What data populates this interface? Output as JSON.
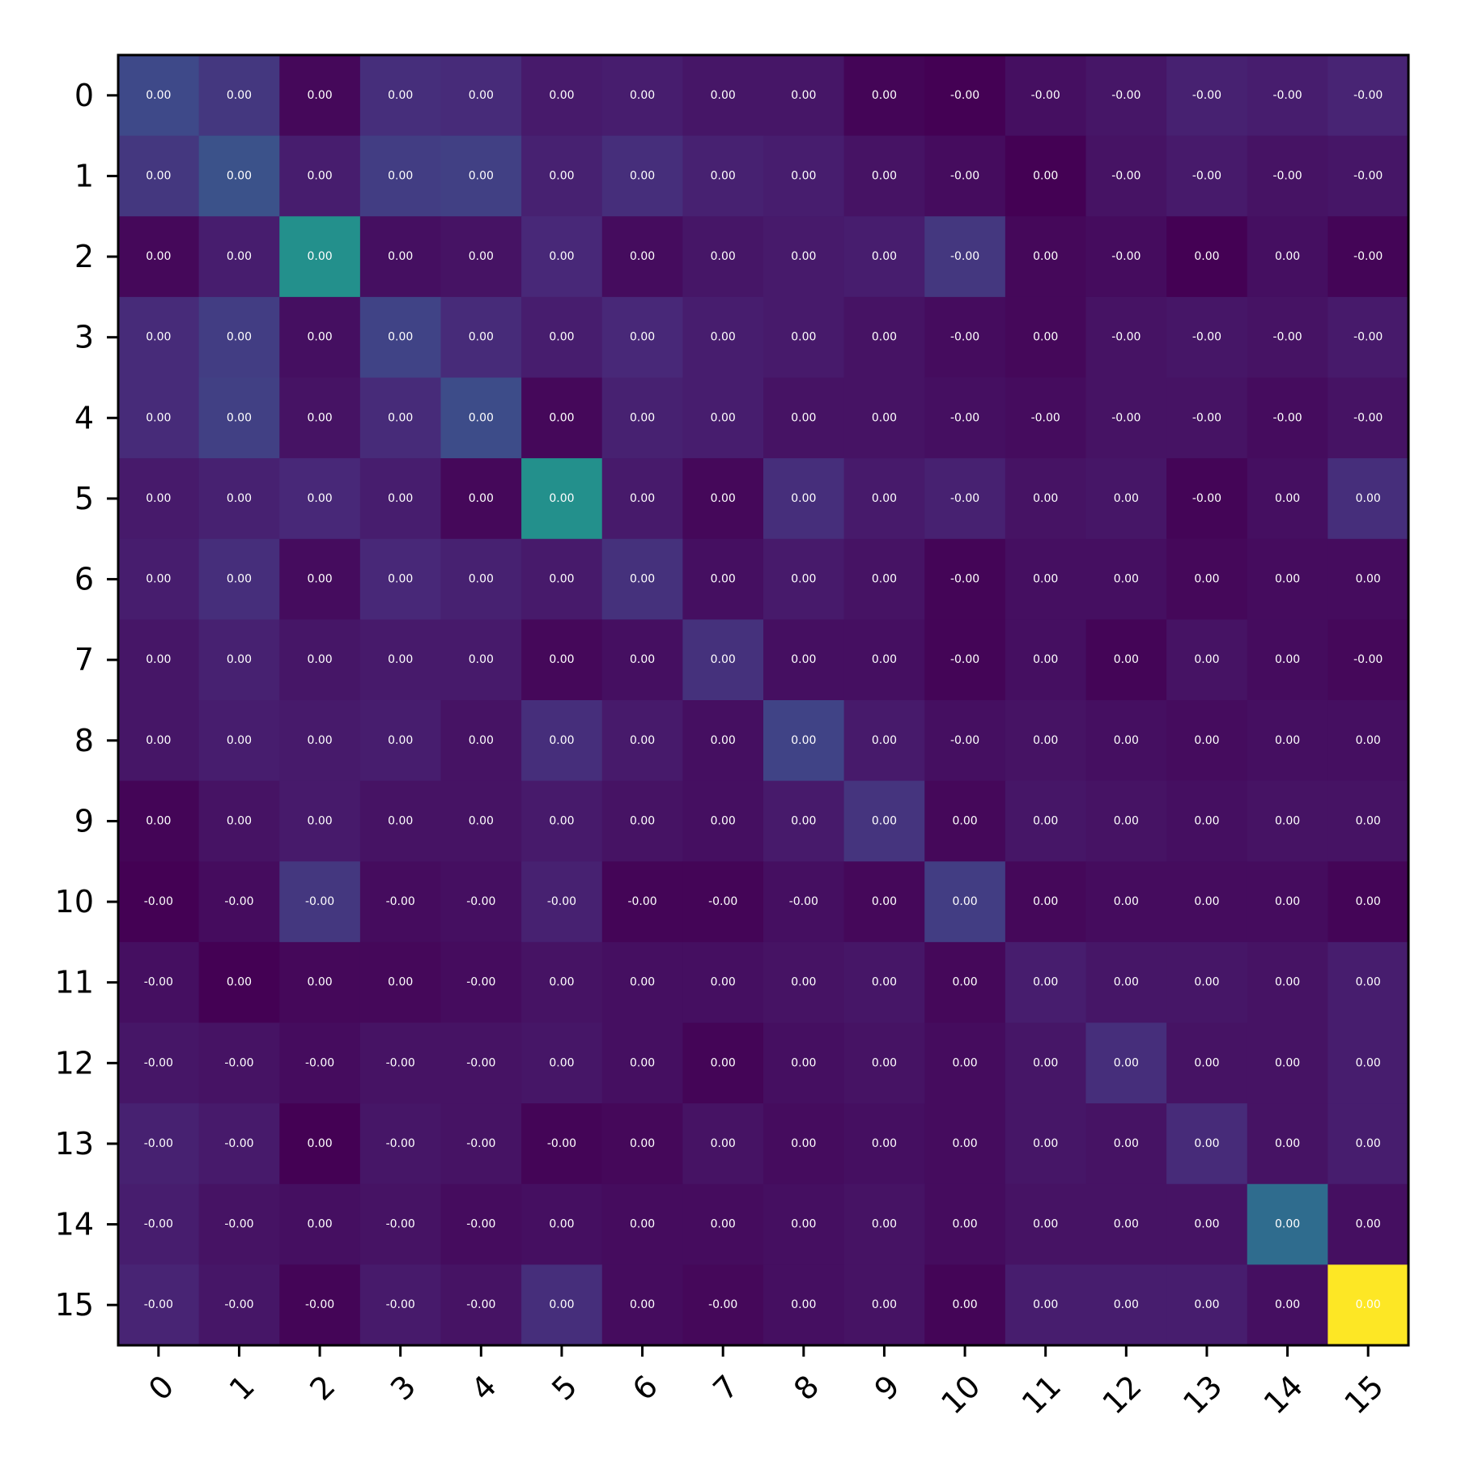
{
  "chart_data": {
    "type": "heatmap",
    "title": "",
    "xlabel": "",
    "ylabel": "",
    "x_ticks": [
      "0",
      "1",
      "2",
      "3",
      "4",
      "5",
      "6",
      "7",
      "8",
      "9",
      "10",
      "11",
      "12",
      "13",
      "14",
      "15"
    ],
    "y_ticks": [
      "0",
      "1",
      "2",
      "3",
      "4",
      "5",
      "6",
      "7",
      "8",
      "9",
      "10",
      "11",
      "12",
      "13",
      "14",
      "15"
    ],
    "colormap": "viridis",
    "cell_labels": [
      [
        "0.00",
        "0.00",
        "0.00",
        "0.00",
        "0.00",
        "0.00",
        "0.00",
        "0.00",
        "0.00",
        "0.00",
        "-0.00",
        "-0.00",
        "-0.00",
        "-0.00",
        "-0.00",
        "-0.00"
      ],
      [
        "0.00",
        "0.00",
        "0.00",
        "0.00",
        "0.00",
        "0.00",
        "0.00",
        "0.00",
        "0.00",
        "0.00",
        "-0.00",
        "0.00",
        "-0.00",
        "-0.00",
        "-0.00",
        "-0.00"
      ],
      [
        "0.00",
        "0.00",
        "0.00",
        "0.00",
        "0.00",
        "0.00",
        "0.00",
        "0.00",
        "0.00",
        "0.00",
        "-0.00",
        "0.00",
        "-0.00",
        "0.00",
        "0.00",
        "-0.00"
      ],
      [
        "0.00",
        "0.00",
        "0.00",
        "0.00",
        "0.00",
        "0.00",
        "0.00",
        "0.00",
        "0.00",
        "0.00",
        "-0.00",
        "0.00",
        "-0.00",
        "-0.00",
        "-0.00",
        "-0.00"
      ],
      [
        "0.00",
        "0.00",
        "0.00",
        "0.00",
        "0.00",
        "0.00",
        "0.00",
        "0.00",
        "0.00",
        "0.00",
        "-0.00",
        "-0.00",
        "-0.00",
        "-0.00",
        "-0.00",
        "-0.00"
      ],
      [
        "0.00",
        "0.00",
        "0.00",
        "0.00",
        "0.00",
        "0.00",
        "0.00",
        "0.00",
        "0.00",
        "0.00",
        "-0.00",
        "0.00",
        "0.00",
        "-0.00",
        "0.00",
        "0.00"
      ],
      [
        "0.00",
        "0.00",
        "0.00",
        "0.00",
        "0.00",
        "0.00",
        "0.00",
        "0.00",
        "0.00",
        "0.00",
        "-0.00",
        "0.00",
        "0.00",
        "0.00",
        "0.00",
        "0.00"
      ],
      [
        "0.00",
        "0.00",
        "0.00",
        "0.00",
        "0.00",
        "0.00",
        "0.00",
        "0.00",
        "0.00",
        "0.00",
        "-0.00",
        "0.00",
        "0.00",
        "0.00",
        "0.00",
        "-0.00"
      ],
      [
        "0.00",
        "0.00",
        "0.00",
        "0.00",
        "0.00",
        "0.00",
        "0.00",
        "0.00",
        "0.00",
        "0.00",
        "-0.00",
        "0.00",
        "0.00",
        "0.00",
        "0.00",
        "0.00"
      ],
      [
        "0.00",
        "0.00",
        "0.00",
        "0.00",
        "0.00",
        "0.00",
        "0.00",
        "0.00",
        "0.00",
        "0.00",
        "0.00",
        "0.00",
        "0.00",
        "0.00",
        "0.00",
        "0.00"
      ],
      [
        "-0.00",
        "-0.00",
        "-0.00",
        "-0.00",
        "-0.00",
        "-0.00",
        "-0.00",
        "-0.00",
        "-0.00",
        "0.00",
        "0.00",
        "0.00",
        "0.00",
        "0.00",
        "0.00",
        "0.00"
      ],
      [
        "-0.00",
        "0.00",
        "0.00",
        "0.00",
        "-0.00",
        "0.00",
        "0.00",
        "0.00",
        "0.00",
        "0.00",
        "0.00",
        "0.00",
        "0.00",
        "0.00",
        "0.00",
        "0.00"
      ],
      [
        "-0.00",
        "-0.00",
        "-0.00",
        "-0.00",
        "-0.00",
        "0.00",
        "0.00",
        "0.00",
        "0.00",
        "0.00",
        "0.00",
        "0.00",
        "0.00",
        "0.00",
        "0.00",
        "0.00"
      ],
      [
        "-0.00",
        "-0.00",
        "0.00",
        "-0.00",
        "-0.00",
        "-0.00",
        "0.00",
        "0.00",
        "0.00",
        "0.00",
        "0.00",
        "0.00",
        "0.00",
        "0.00",
        "0.00",
        "0.00"
      ],
      [
        "-0.00",
        "-0.00",
        "0.00",
        "-0.00",
        "-0.00",
        "0.00",
        "0.00",
        "0.00",
        "0.00",
        "0.00",
        "0.00",
        "0.00",
        "0.00",
        "0.00",
        "0.00",
        "0.00"
      ],
      [
        "-0.00",
        "-0.00",
        "-0.00",
        "-0.00",
        "-0.00",
        "0.00",
        "0.00",
        "-0.00",
        "0.00",
        "0.00",
        "0.00",
        "0.00",
        "0.00",
        "0.00",
        "0.00",
        "0.00"
      ]
    ],
    "intensity": [
      [
        0.22,
        0.16,
        0.02,
        0.13,
        0.12,
        0.07,
        0.08,
        0.06,
        0.06,
        0.01,
        0.0,
        0.04,
        0.06,
        0.09,
        0.08,
        0.1
      ],
      [
        0.16,
        0.25,
        0.08,
        0.18,
        0.19,
        0.09,
        0.13,
        0.09,
        0.08,
        0.05,
        0.03,
        0.0,
        0.05,
        0.07,
        0.05,
        0.06
      ],
      [
        0.02,
        0.08,
        0.5,
        0.04,
        0.05,
        0.11,
        0.03,
        0.06,
        0.07,
        0.08,
        0.16,
        0.02,
        0.03,
        0.0,
        0.04,
        0.01
      ],
      [
        0.12,
        0.18,
        0.04,
        0.2,
        0.12,
        0.08,
        0.11,
        0.08,
        0.07,
        0.05,
        0.03,
        0.02,
        0.05,
        0.06,
        0.05,
        0.07
      ],
      [
        0.12,
        0.19,
        0.05,
        0.12,
        0.23,
        0.02,
        0.09,
        0.08,
        0.05,
        0.05,
        0.04,
        0.03,
        0.05,
        0.05,
        0.03,
        0.05
      ],
      [
        0.07,
        0.09,
        0.11,
        0.08,
        0.02,
        0.5,
        0.07,
        0.02,
        0.13,
        0.07,
        0.09,
        0.05,
        0.06,
        0.01,
        0.04,
        0.13
      ],
      [
        0.08,
        0.13,
        0.03,
        0.11,
        0.09,
        0.07,
        0.14,
        0.04,
        0.07,
        0.05,
        0.01,
        0.04,
        0.04,
        0.02,
        0.03,
        0.03
      ],
      [
        0.06,
        0.09,
        0.06,
        0.07,
        0.07,
        0.02,
        0.04,
        0.14,
        0.04,
        0.04,
        0.01,
        0.04,
        0.01,
        0.05,
        0.03,
        0.02
      ],
      [
        0.06,
        0.08,
        0.07,
        0.08,
        0.05,
        0.13,
        0.07,
        0.04,
        0.2,
        0.07,
        0.04,
        0.05,
        0.04,
        0.03,
        0.04,
        0.04
      ],
      [
        0.01,
        0.05,
        0.07,
        0.05,
        0.05,
        0.07,
        0.05,
        0.04,
        0.07,
        0.15,
        0.02,
        0.06,
        0.05,
        0.04,
        0.05,
        0.05
      ],
      [
        0.0,
        0.03,
        0.16,
        0.03,
        0.04,
        0.09,
        0.01,
        0.01,
        0.04,
        0.02,
        0.18,
        0.02,
        0.03,
        0.03,
        0.03,
        0.01
      ],
      [
        0.04,
        0.0,
        0.02,
        0.02,
        0.03,
        0.05,
        0.04,
        0.04,
        0.05,
        0.06,
        0.02,
        0.08,
        0.06,
        0.06,
        0.05,
        0.08
      ],
      [
        0.06,
        0.05,
        0.03,
        0.05,
        0.05,
        0.06,
        0.04,
        0.01,
        0.04,
        0.05,
        0.03,
        0.06,
        0.13,
        0.05,
        0.05,
        0.08
      ],
      [
        0.09,
        0.07,
        0.0,
        0.06,
        0.05,
        0.01,
        0.02,
        0.05,
        0.03,
        0.04,
        0.03,
        0.06,
        0.05,
        0.12,
        0.05,
        0.08
      ],
      [
        0.08,
        0.05,
        0.04,
        0.05,
        0.03,
        0.04,
        0.03,
        0.03,
        0.04,
        0.05,
        0.03,
        0.05,
        0.05,
        0.05,
        0.35,
        0.04
      ],
      [
        0.1,
        0.06,
        0.01,
        0.07,
        0.05,
        0.13,
        0.03,
        0.02,
        0.04,
        0.05,
        0.01,
        0.08,
        0.08,
        0.08,
        0.04,
        1.0
      ]
    ]
  }
}
